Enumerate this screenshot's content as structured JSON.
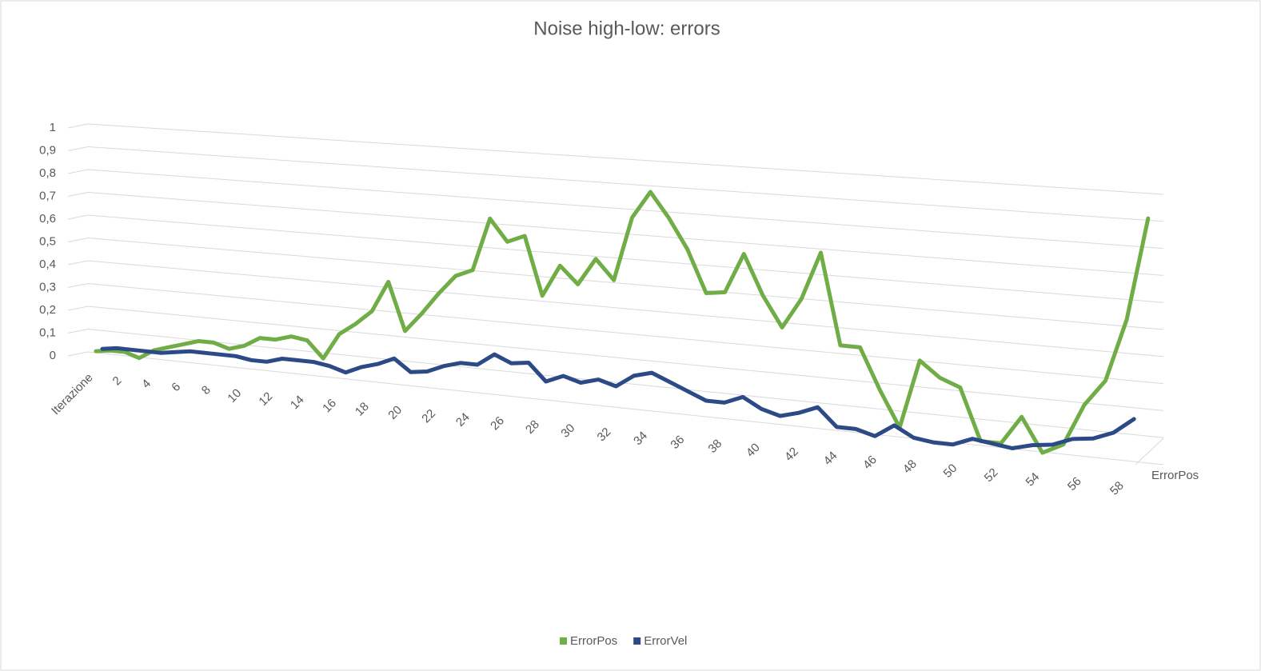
{
  "chart_data": {
    "type": "line",
    "title": "Noise high-low: errors",
    "categories": [
      "Iterazione",
      null,
      "2",
      null,
      "4",
      null,
      "6",
      null,
      "8",
      null,
      "10",
      null,
      "12",
      null,
      "14",
      null,
      "16",
      null,
      "18",
      null,
      "20",
      null,
      "22",
      null,
      "24",
      null,
      "26",
      null,
      "28",
      null,
      "30",
      null,
      "32",
      null,
      "34",
      null,
      "36",
      null,
      "38",
      null,
      "40",
      null,
      "42",
      null,
      "44",
      null,
      "46",
      null,
      "48",
      null,
      "50",
      null,
      "52",
      null,
      "54",
      null,
      "56",
      null,
      "58",
      null
    ],
    "depth_categories": [
      "ErrorPos"
    ],
    "series": [
      {
        "name": "ErrorPos",
        "color": "#70ad47",
        "values": [
          0.01,
          0.02,
          0.02,
          0.0,
          0.04,
          0.06,
          0.08,
          0.1,
          0.1,
          0.08,
          0.1,
          0.14,
          0.14,
          0.16,
          0.15,
          0.08,
          0.19,
          0.24,
          0.3,
          0.43,
          0.23,
          0.31,
          0.4,
          0.48,
          0.51,
          0.73,
          0.64,
          0.67,
          0.43,
          0.56,
          0.49,
          0.6,
          0.52,
          0.78,
          0.89,
          0.79,
          0.67,
          0.5,
          0.51,
          0.67,
          0.51,
          0.39,
          0.51,
          0.7,
          0.34,
          0.34,
          0.18,
          0.04,
          0.31,
          0.25,
          0.22,
          0.02,
          0.02,
          0.13,
          0.0,
          0.04,
          0.2,
          0.3,
          0.54,
          0.93
        ]
      },
      {
        "name": "ErrorVel",
        "color": "#2b4a86",
        "values": [
          0.02,
          0.03,
          0.03,
          0.03,
          0.03,
          0.04,
          0.05,
          0.05,
          0.05,
          0.05,
          0.04,
          0.04,
          0.06,
          0.06,
          0.06,
          0.05,
          0.03,
          0.06,
          0.08,
          0.11,
          0.06,
          0.07,
          0.1,
          0.12,
          0.12,
          0.17,
          0.14,
          0.15,
          0.08,
          0.11,
          0.09,
          0.11,
          0.09,
          0.14,
          0.16,
          0.13,
          0.1,
          0.07,
          0.07,
          0.1,
          0.06,
          0.04,
          0.06,
          0.09,
          0.02,
          0.02,
          0.0,
          0.05,
          0.01,
          0.0,
          0.0,
          0.03,
          0.02,
          0.01,
          0.03,
          0.04,
          0.07,
          0.08,
          0.11,
          0.17
        ]
      }
    ],
    "ylim": [
      0,
      1
    ],
    "yticks": [
      0,
      {
        "value": 0.1,
        "label": "0,1"
      },
      {
        "value": 0.2,
        "label": "0,2"
      },
      {
        "value": 0.3,
        "label": "0,3"
      },
      {
        "value": 0.4,
        "label": "0,4"
      },
      {
        "value": 0.5,
        "label": "0,5"
      },
      {
        "value": 0.6,
        "label": "0,6"
      },
      {
        "value": 0.7,
        "label": "0,7"
      },
      {
        "value": 0.8,
        "label": "0,8"
      },
      {
        "value": 0.9,
        "label": "0,9"
      },
      1
    ],
    "grid": true,
    "legend": "bottom"
  }
}
